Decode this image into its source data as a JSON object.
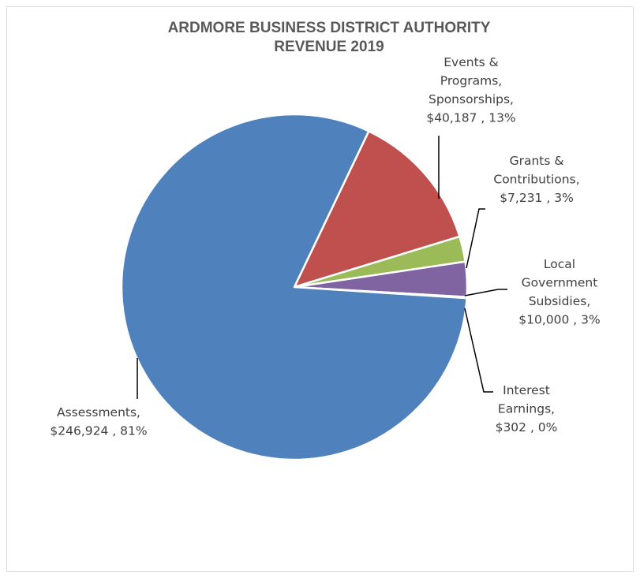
{
  "chart_data": {
    "type": "pie",
    "title_lines": [
      "ARDMORE BUSINESS DISTRICT AUTHORITY",
      "REVENUE 2019"
    ],
    "slices": [
      {
        "name": "Events & Programs, Sponsorships",
        "value": 40187,
        "percent": "13%",
        "color": "#c0504d",
        "label_lines": [
          "Events &",
          "Programs,",
          "Sponsorships,",
          "$40,187 , 13%"
        ]
      },
      {
        "name": "Grants & Contributions",
        "value": 7231,
        "percent": "3%",
        "color": "#9bbb59",
        "label_lines": [
          "Grants &",
          "Contributions,",
          "$7,231 , 3%"
        ]
      },
      {
        "name": "Local Government Subsidies",
        "value": 10000,
        "percent": "3%",
        "color": "#8064a2",
        "label_lines": [
          "Local",
          "Government",
          "Subsidies,",
          "$10,000 , 3%"
        ]
      },
      {
        "name": "Interest Earnings",
        "value": 302,
        "percent": "0%",
        "color": "#4bacc6",
        "label_lines": [
          "Interest",
          "Earnings,",
          "$302 , 0%"
        ]
      },
      {
        "name": "Assessments",
        "value": 246924,
        "percent": "81%",
        "color": "#4f81bd",
        "label_lines": [
          "Assessments,",
          "$246,924 , 81%"
        ]
      }
    ],
    "start_angle_deg": 25.5,
    "direction": "clockwise",
    "legend": "none"
  }
}
